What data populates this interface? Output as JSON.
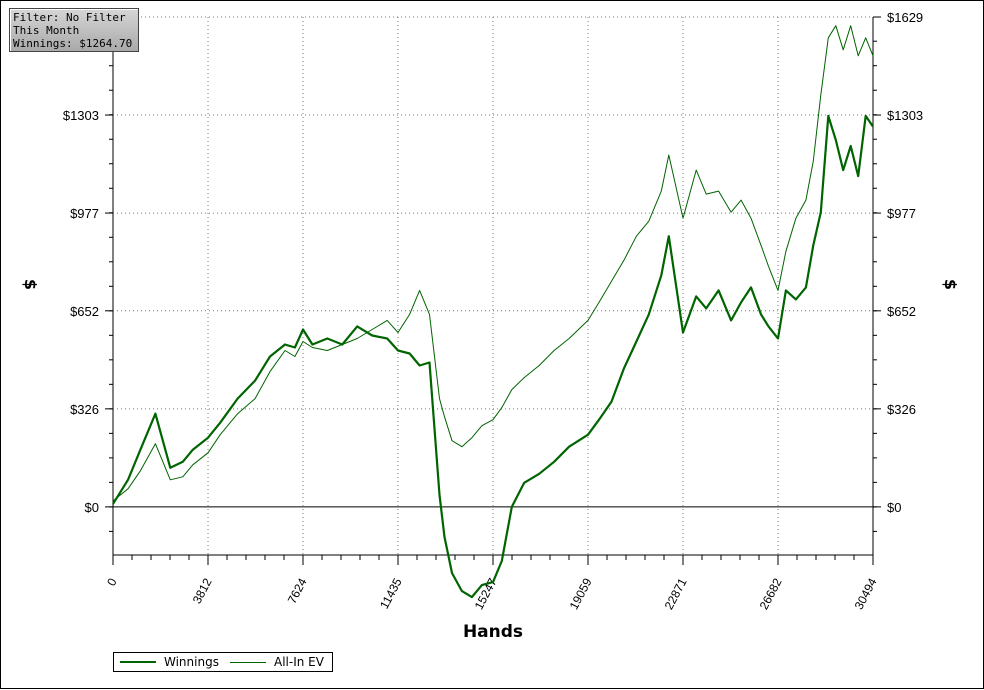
{
  "info": {
    "filter": "Filter: No Filter",
    "period": "This Month",
    "winnings": "Winnings: $1264.70"
  },
  "chart_data": {
    "type": "line",
    "xlabel": "Hands",
    "ylabel": "$",
    "xlim": [
      0,
      30494
    ],
    "ylim": [
      -160,
      1629
    ],
    "x_ticks": [
      "0",
      "3812",
      "7624",
      "11435",
      "15247",
      "19059",
      "22871",
      "26682",
      "30494"
    ],
    "y_ticks_left": [
      "$0",
      "$326",
      "$652",
      "$977",
      "$1303"
    ],
    "y_ticks_right": [
      "$0",
      "$326",
      "$652",
      "$977",
      "$1303",
      "$1629"
    ],
    "y_tick_values": [
      0,
      326,
      652,
      977,
      1303,
      1629
    ],
    "grid": true,
    "legend_position": "bottom-left",
    "series": [
      {
        "name": "Winnings",
        "color": "#006400",
        "x": [
          0,
          600,
          1100,
          1700,
          2300,
          2800,
          3200,
          3812,
          4300,
          5000,
          5700,
          6300,
          6900,
          7300,
          7624,
          8000,
          8600,
          9200,
          9800,
          10400,
          11000,
          11435,
          11900,
          12300,
          12700,
          13100,
          13300,
          13600,
          14000,
          14400,
          14800,
          15247,
          15600,
          16000,
          16500,
          17100,
          17700,
          18300,
          19059,
          19500,
          20000,
          20500,
          21000,
          21500,
          22000,
          22300,
          22871,
          23400,
          23800,
          24300,
          24800,
          25200,
          25600,
          26000,
          26300,
          26682,
          27000,
          27400,
          27800,
          28100,
          28400,
          28700,
          29000,
          29300,
          29600,
          29900,
          30200,
          30494
        ],
        "y": [
          10,
          90,
          190,
          310,
          130,
          150,
          190,
          230,
          280,
          360,
          420,
          500,
          540,
          530,
          590,
          540,
          560,
          540,
          600,
          570,
          560,
          520,
          510,
          470,
          480,
          40,
          -100,
          -220,
          -280,
          -300,
          -260,
          -250,
          -180,
          0,
          80,
          110,
          150,
          200,
          240,
          290,
          350,
          460,
          550,
          640,
          770,
          900,
          580,
          700,
          660,
          720,
          620,
          680,
          730,
          640,
          600,
          560,
          720,
          690,
          730,
          870,
          980,
          1300,
          1220,
          1120,
          1200,
          1100,
          1300,
          1264.7
        ]
      },
      {
        "name": "All-In EV",
        "color": "#006400",
        "x": [
          0,
          600,
          1100,
          1700,
          2300,
          2800,
          3200,
          3812,
          4300,
          5000,
          5700,
          6300,
          6900,
          7300,
          7624,
          8000,
          8600,
          9200,
          9800,
          10400,
          11000,
          11435,
          11900,
          12300,
          12700,
          13100,
          13300,
          13600,
          14000,
          14400,
          14800,
          15247,
          15600,
          16000,
          16500,
          17100,
          17700,
          18300,
          19059,
          19500,
          20000,
          20500,
          21000,
          21500,
          22000,
          22300,
          22871,
          23400,
          23800,
          24300,
          24800,
          25200,
          25600,
          26000,
          26300,
          26682,
          27000,
          27400,
          27800,
          28100,
          28400,
          28700,
          29000,
          29300,
          29600,
          29900,
          30200,
          30494
        ],
        "y": [
          20,
          60,
          120,
          210,
          90,
          100,
          140,
          180,
          240,
          310,
          360,
          450,
          520,
          500,
          550,
          530,
          520,
          540,
          560,
          590,
          620,
          580,
          640,
          720,
          640,
          360,
          300,
          220,
          200,
          230,
          270,
          290,
          330,
          390,
          430,
          470,
          520,
          560,
          620,
          680,
          750,
          820,
          900,
          950,
          1050,
          1170,
          960,
          1120,
          1040,
          1050,
          980,
          1020,
          960,
          870,
          800,
          720,
          850,
          960,
          1020,
          1150,
          1370,
          1560,
          1600,
          1520,
          1600,
          1500,
          1560,
          1500
        ]
      }
    ]
  },
  "legend": {
    "items": [
      {
        "label": "Winnings"
      },
      {
        "label": "All-In EV"
      }
    ]
  }
}
